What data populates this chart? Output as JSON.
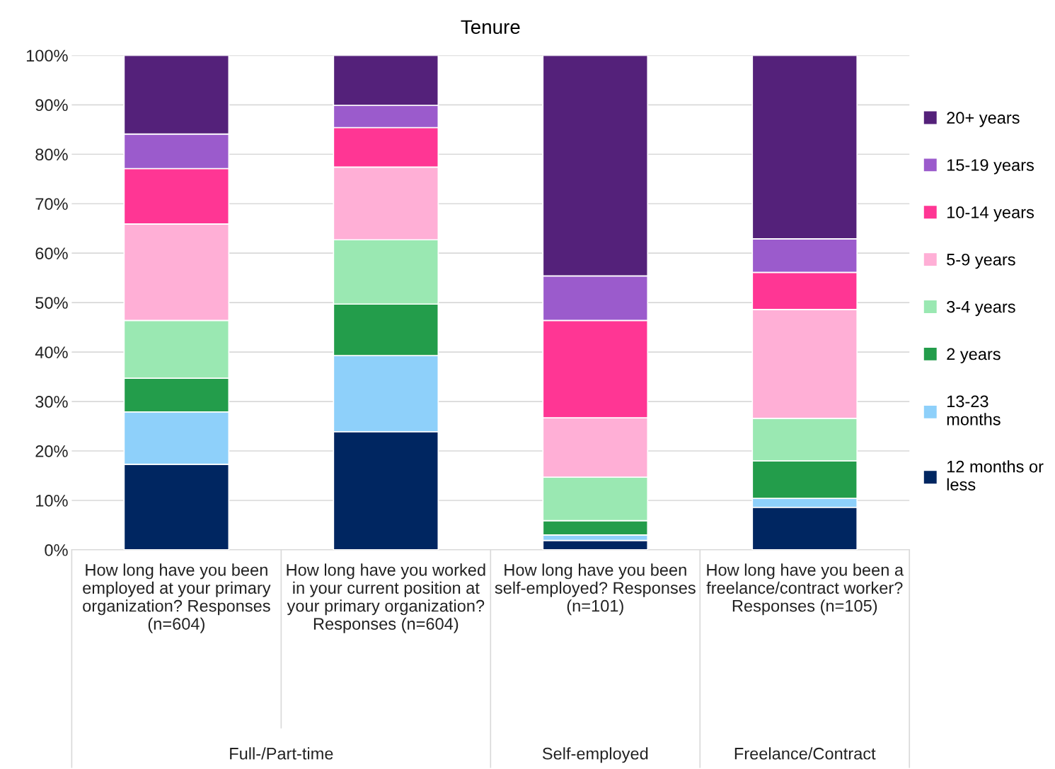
{
  "chart_data": {
    "type": "bar",
    "stacked": true,
    "title": "Tenure",
    "categories": [
      "How long have you been employed at your primary organization? Responses (n=604)",
      "How long have you worked in your current position at your primary organization? Responses (n=604)",
      "How long have you been self-employed? Responses (n=101)",
      "How long have you been a freelance/contract worker? Responses (n=105)"
    ],
    "series": [
      {
        "name": "12 months or less",
        "color": "#002661",
        "values": [
          17.3,
          23.9,
          1.9,
          8.6
        ]
      },
      {
        "name": "13-23 months",
        "color": "#8ed0fa",
        "values": [
          10.6,
          15.4,
          1.1,
          1.8
        ]
      },
      {
        "name": "2 years",
        "color": "#239d4b",
        "values": [
          6.8,
          10.4,
          2.9,
          7.6
        ]
      },
      {
        "name": "3-4 years",
        "color": "#9ae8b2",
        "values": [
          11.7,
          13.0,
          8.8,
          8.6
        ]
      },
      {
        "name": "5-9 years",
        "color": "#ffafd6",
        "values": [
          19.5,
          14.7,
          12.0,
          22.0
        ]
      },
      {
        "name": "10-14 years",
        "color": "#ff3694",
        "values": [
          11.2,
          8.0,
          19.7,
          7.5
        ]
      },
      {
        "name": "15-19 years",
        "color": "#9b5bcc",
        "values": [
          7.0,
          4.5,
          9.0,
          6.8
        ]
      },
      {
        "name": "20+ years",
        "color": "#54217a",
        "values": [
          15.9,
          10.1,
          44.6,
          37.1
        ]
      }
    ],
    "ylim": [
      0,
      100
    ],
    "yticks": [
      {
        "value": 0,
        "label": "0%"
      },
      {
        "value": 10,
        "label": "10%"
      },
      {
        "value": 20,
        "label": "20%"
      },
      {
        "value": 30,
        "label": "30%"
      },
      {
        "value": 40,
        "label": "40%"
      },
      {
        "value": 50,
        "label": "50%"
      },
      {
        "value": 60,
        "label": "60%"
      },
      {
        "value": 70,
        "label": "70%"
      },
      {
        "value": 80,
        "label": "80%"
      },
      {
        "value": 90,
        "label": "90%"
      },
      {
        "value": 100,
        "label": "100%"
      }
    ],
    "grid": "y",
    "legend": "right",
    "annotations": [
      "Full-/Part-time",
      "Self-employed",
      "Freelance/Contract"
    ]
  }
}
